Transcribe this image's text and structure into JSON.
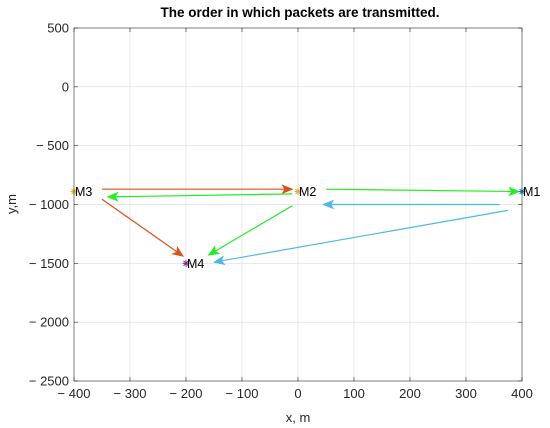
{
  "chart_data": {
    "type": "scatter",
    "title": "The order in which packets are transmitted.",
    "xlabel": "x, m",
    "ylabel": "y,m",
    "xlim": [
      -400,
      400
    ],
    "ylim": [
      -2500,
      500
    ],
    "xticks": [
      -400,
      -300,
      -200,
      -100,
      0,
      100,
      200,
      300,
      400
    ],
    "yticks": [
      -2500,
      -2000,
      -1500,
      -1000,
      -500,
      0,
      500
    ],
    "xtick_labels": [
      "− 400",
      "− 300",
      "− 200",
      "− 100",
      "0",
      "100",
      "200",
      "300",
      "400"
    ],
    "ytick_labels": [
      "− 2500",
      "− 2000",
      "− 1500",
      "− 1000",
      "− 500",
      "0",
      "500"
    ],
    "grid": true,
    "nodes": [
      {
        "name": "M1",
        "x": 400,
        "y": -890,
        "color": "#1f77b4"
      },
      {
        "name": "M2",
        "x": 0,
        "y": -890,
        "color": "#e8a33c"
      },
      {
        "name": "M3",
        "x": -400,
        "y": -890,
        "color": "#edb120"
      },
      {
        "name": "M4",
        "x": -200,
        "y": -1500,
        "color": "#7e2f8e"
      }
    ],
    "arrows": [
      {
        "from": [
          -350,
          -870
        ],
        "to": [
          -10,
          -870
        ],
        "color": "#d95319"
      },
      {
        "from": [
          -350,
          -955
        ],
        "to": [
          -205,
          -1440
        ],
        "color": "#d95319"
      },
      {
        "from": [
          50,
          -870
        ],
        "to": [
          395,
          -890
        ],
        "color": "#22ee22"
      },
      {
        "from": [
          -10,
          -910
        ],
        "to": [
          -340,
          -935
        ],
        "color": "#22ee22"
      },
      {
        "from": [
          -10,
          -1010
        ],
        "to": [
          -160,
          -1430
        ],
        "color": "#22ee22"
      },
      {
        "from": [
          360,
          -1000
        ],
        "to": [
          45,
          -1000
        ],
        "color": "#4db8e8"
      },
      {
        "from": [
          375,
          -1050
        ],
        "to": [
          -150,
          -1490
        ],
        "color": "#4db8e8"
      }
    ]
  }
}
